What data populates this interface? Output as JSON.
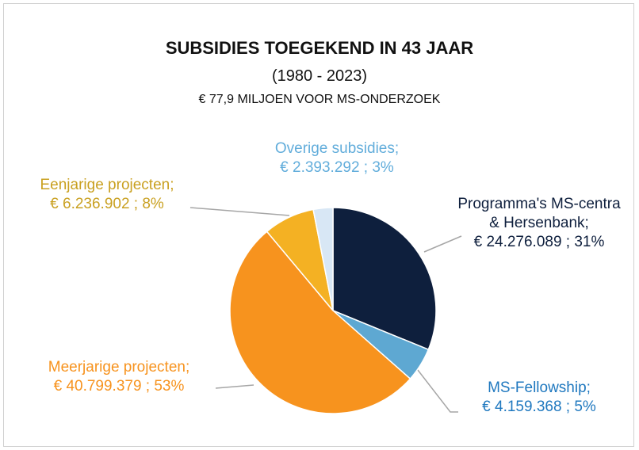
{
  "chart_data": {
    "type": "pie",
    "title": "SUBSIDIES TOEGEKEND IN 43 JAAR",
    "subtitle": "(1980 - 2023)",
    "annotation": "€ 77,9 MILJOEN VOOR MS-ONDERZOEK",
    "categories": [
      "Programma's MS-centra & Hersenbank;",
      "MS-Fellowship;",
      "Meerjarige projecten;",
      "Eenjarige projecten;",
      "Overige subsidies;"
    ],
    "values": [
      24276089,
      4159368,
      40799379,
      6236902,
      2393292
    ],
    "value_labels": [
      "€ 24.276.089 ; 31%",
      "€ 4.159.368 ; 5%",
      "€ 40.799.379 ; 53%",
      "€ 6.236.902 ; 8%",
      "€ 2.393.292 ; 3%"
    ],
    "colors": [
      "#0e1f3d",
      "#5ea8d2",
      "#f7931e",
      "#f4b123",
      "#d8e7f5"
    ],
    "label_colors": [
      "#0e1f3d",
      "#1f78bf",
      "#f7931e",
      "#c9a020",
      "#62addb"
    ]
  }
}
